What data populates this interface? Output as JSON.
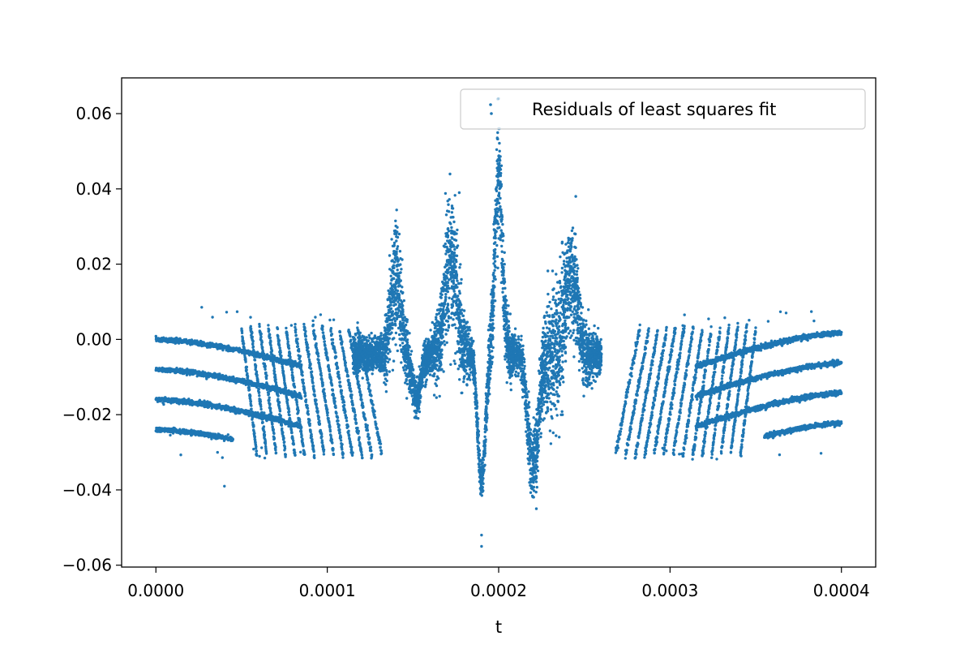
{
  "chart_data": {
    "type": "scatter",
    "title": "",
    "xlabel": "t",
    "ylabel": "",
    "xlim": [
      -2e-05,
      0.00042
    ],
    "ylim": [
      -0.0605,
      0.0695
    ],
    "x_ticks": [
      0.0,
      0.0001,
      0.0002,
      0.0003,
      0.0004
    ],
    "x_tick_labels": [
      "0.0000",
      "0.0001",
      "0.0002",
      "0.0003",
      "0.0004"
    ],
    "y_ticks": [
      -0.06,
      -0.04,
      -0.02,
      0.0,
      0.02,
      0.04,
      0.06
    ],
    "y_tick_labels": [
      "−0.06",
      "−0.04",
      "−0.02",
      "0.00",
      "0.02",
      "0.04",
      "0.06"
    ],
    "grid": false,
    "legend_position": "upper-right",
    "series": [
      {
        "name": "Residuals of least squares fit",
        "color": "#1f77b4",
        "marker": "point",
        "x_range": [
          0.0,
          0.0004
        ],
        "description_points": [
          [
            0.0,
            0.0
          ],
          [
            0.0,
            -0.008
          ],
          [
            0.0,
            -0.016
          ],
          [
            0.0,
            -0.024
          ],
          [
            4e-05,
            -0.032
          ],
          [
            4e-05,
            -0.039
          ],
          [
            0.00014,
            0.029
          ],
          [
            0.000175,
            0.036
          ],
          [
            0.0002,
            0.056
          ],
          [
            0.00019,
            -0.055
          ],
          [
            0.00022,
            -0.045
          ],
          [
            0.000245,
            0.038
          ],
          [
            0.0004,
            0.002
          ],
          [
            0.0004,
            -0.006
          ],
          [
            0.0004,
            -0.014
          ],
          [
            0.0004,
            -0.022
          ],
          [
            0.000395,
            0.009
          ],
          [
            0.000395,
            -0.031
          ]
        ]
      }
    ]
  }
}
